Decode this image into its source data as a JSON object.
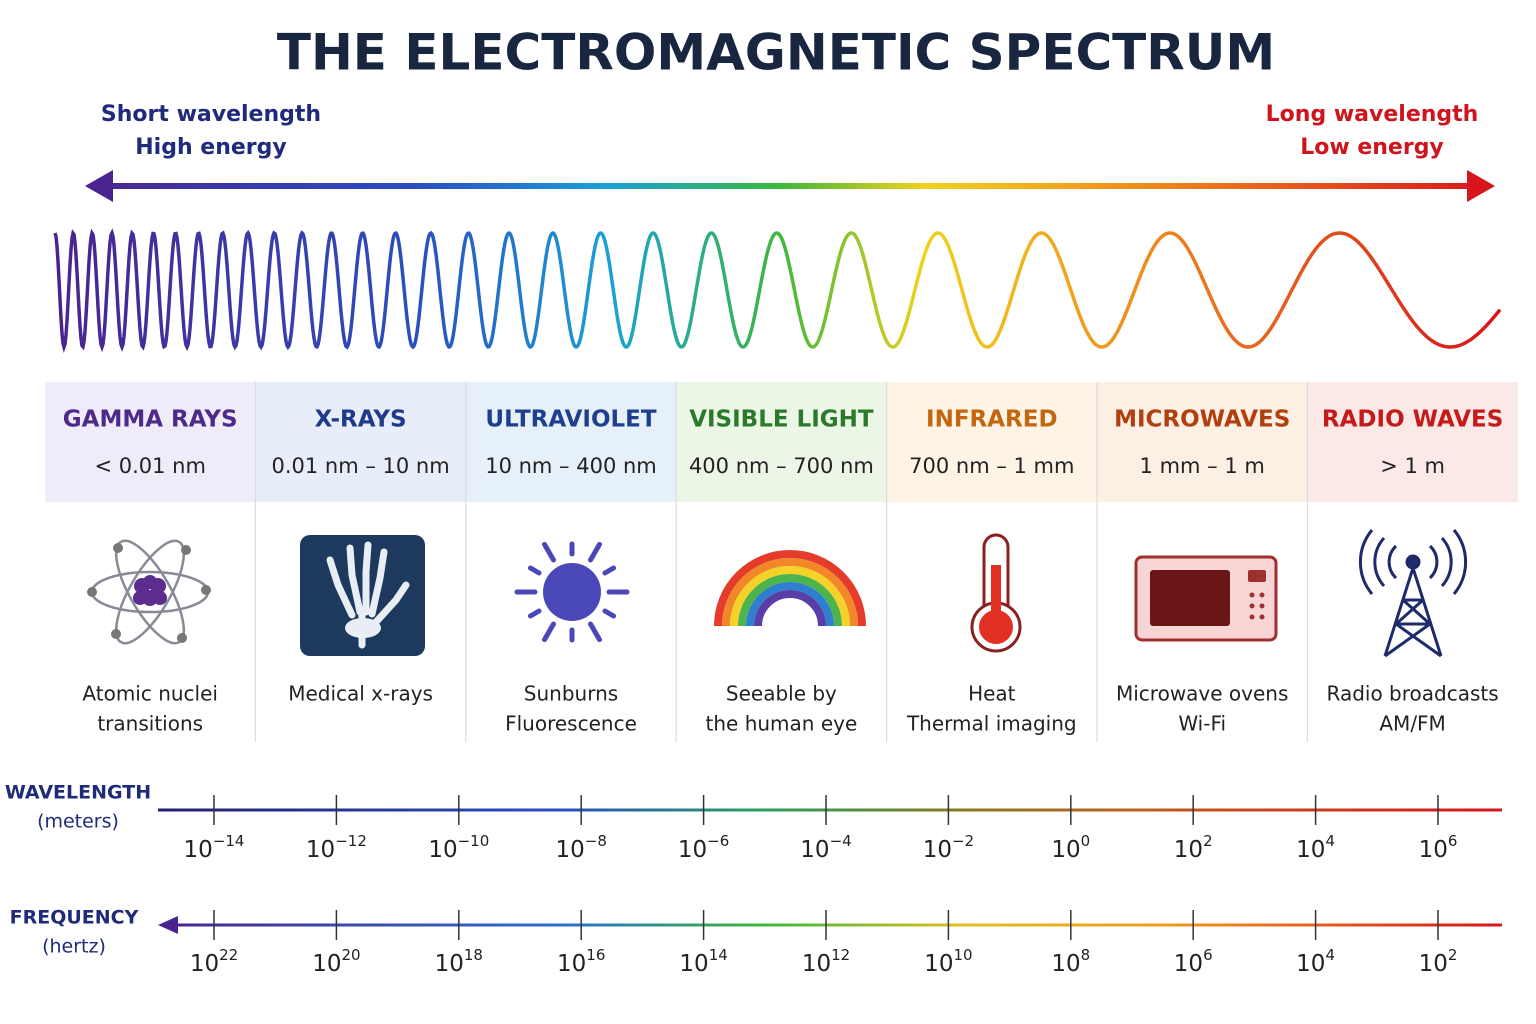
{
  "title": "THE ELECTROMAGNETIC SPECTRUM",
  "short_end": {
    "lines": [
      "Short wavelength",
      "High energy"
    ]
  },
  "long_end": {
    "lines": [
      "Long wavelength",
      "Low energy"
    ]
  },
  "bands": [
    {
      "name": "GAMMA RAYS",
      "range": "< 0.01 nm",
      "uses": [
        "Atomic nuclei",
        "transitions"
      ]
    },
    {
      "name": "X-RAYS",
      "range": "0.01 nm – 10 nm",
      "uses": [
        "Medical x-rays"
      ]
    },
    {
      "name": "ULTRAVIOLET",
      "range": "10 nm – 400 nm",
      "uses": [
        "Sunburns",
        "Fluorescence"
      ]
    },
    {
      "name": "VISIBLE LIGHT",
      "range": "400 nm – 700 nm",
      "uses": [
        "Seeable by",
        "the human eye"
      ]
    },
    {
      "name": "INFRARED",
      "range": "700 nm – 1 mm",
      "uses": [
        "Heat",
        "Thermal imaging"
      ]
    },
    {
      "name": "MICROWAVES",
      "range": "1 mm – 1 m",
      "uses": [
        "Microwave ovens",
        "Wi-Fi"
      ]
    },
    {
      "name": "RADIO WAVES",
      "range": "> 1 m",
      "uses": [
        "Radio broadcasts",
        "AM/FM"
      ]
    }
  ],
  "wavelength_axis": {
    "label": "WAVELENGTH",
    "unit": "(meters)",
    "ticks": [
      {
        "base": "10",
        "exp": "−14"
      },
      {
        "base": "10",
        "exp": "−12"
      },
      {
        "base": "10",
        "exp": "−10"
      },
      {
        "base": "10",
        "exp": "−8"
      },
      {
        "base": "10",
        "exp": "−6"
      },
      {
        "base": "10",
        "exp": "−4"
      },
      {
        "base": "10",
        "exp": "−2"
      },
      {
        "base": "10",
        "exp": "0"
      },
      {
        "base": "10",
        "exp": "2"
      },
      {
        "base": "10",
        "exp": "4"
      },
      {
        "base": "10",
        "exp": "6"
      }
    ]
  },
  "frequency_axis": {
    "label": "FREQUENCY",
    "unit": "(hertz)",
    "ticks": [
      {
        "base": "10",
        "exp": "22"
      },
      {
        "base": "10",
        "exp": "20"
      },
      {
        "base": "10",
        "exp": "18"
      },
      {
        "base": "10",
        "exp": "16"
      },
      {
        "base": "10",
        "exp": "14"
      },
      {
        "base": "10",
        "exp": "12"
      },
      {
        "base": "10",
        "exp": "10"
      },
      {
        "base": "10",
        "exp": "8"
      },
      {
        "base": "10",
        "exp": "6"
      },
      {
        "base": "10",
        "exp": "4"
      },
      {
        "base": "10",
        "exp": "2"
      }
    ]
  }
}
